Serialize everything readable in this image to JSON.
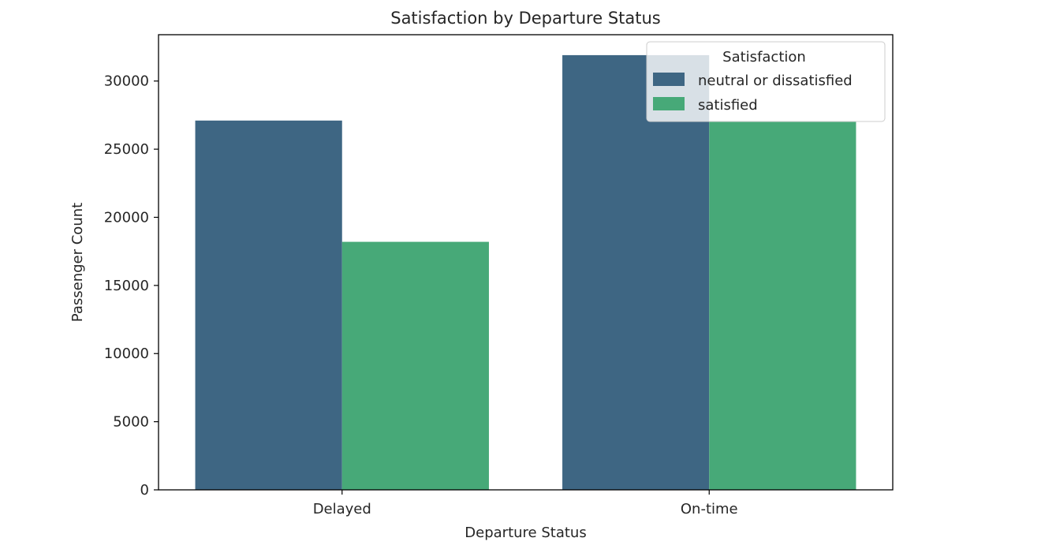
{
  "chart_data": {
    "type": "bar",
    "title": "Satisfaction by Departure Status",
    "xlabel": "Departure Status",
    "ylabel": "Passenger Count",
    "categories": [
      "Delayed",
      "On-time"
    ],
    "series": [
      {
        "name": "neutral or dissatisfied",
        "values": [
          27100,
          31900
        ],
        "color": "#3e6683"
      },
      {
        "name": "satisfied",
        "values": [
          18200,
          27000
        ],
        "color": "#47a978"
      }
    ],
    "ylim": [
      0,
      33400
    ],
    "yticks": [
      0,
      5000,
      10000,
      15000,
      20000,
      25000,
      30000
    ],
    "grid": false,
    "legend": {
      "title": "Satisfaction",
      "position": "top-right"
    }
  }
}
